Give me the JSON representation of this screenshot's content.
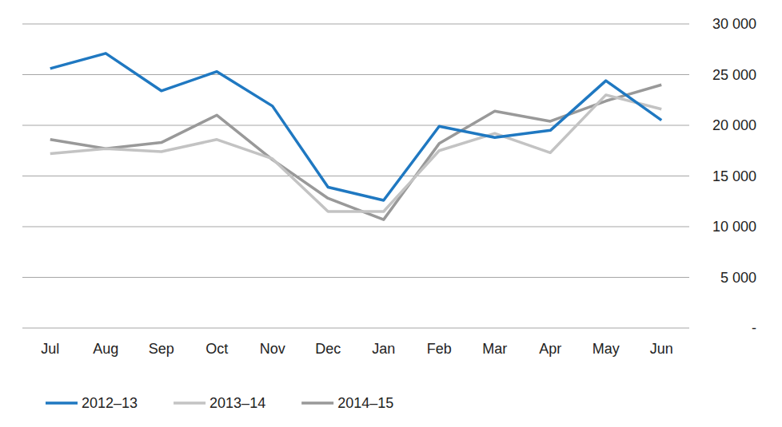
{
  "chart_data": {
    "type": "line",
    "categories": [
      "Jul",
      "Aug",
      "Sep",
      "Oct",
      "Nov",
      "Dec",
      "Jan",
      "Feb",
      "Mar",
      "Apr",
      "May",
      "Jun"
    ],
    "series": [
      {
        "name": "2012–13",
        "color": "#1f78c1",
        "values": [
          25600,
          27100,
          23400,
          25300,
          21900,
          13900,
          12600,
          19900,
          18800,
          19500,
          24400,
          20500
        ]
      },
      {
        "name": "2013–14",
        "color": "#c3c3c3",
        "values": [
          17200,
          17700,
          17400,
          18600,
          16700,
          11500,
          11500,
          17500,
          19200,
          17300,
          23000,
          21600
        ]
      },
      {
        "name": "2014–15",
        "color": "#999999",
        "values": [
          18600,
          17700,
          18300,
          21000,
          16600,
          12800,
          10700,
          18200,
          21400,
          20400,
          22400,
          24000
        ]
      }
    ],
    "ylim": [
      0,
      30000
    ],
    "yticks": [
      {
        "value": 0,
        "label": "-"
      },
      {
        "value": 5000,
        "label": "5 000"
      },
      {
        "value": 10000,
        "label": "10 000"
      },
      {
        "value": 15000,
        "label": "15 000"
      },
      {
        "value": 20000,
        "label": "20 000"
      },
      {
        "value": 25000,
        "label": "25 000"
      },
      {
        "value": 30000,
        "label": "30 000"
      }
    ],
    "grid": true,
    "legend": "bottom"
  }
}
